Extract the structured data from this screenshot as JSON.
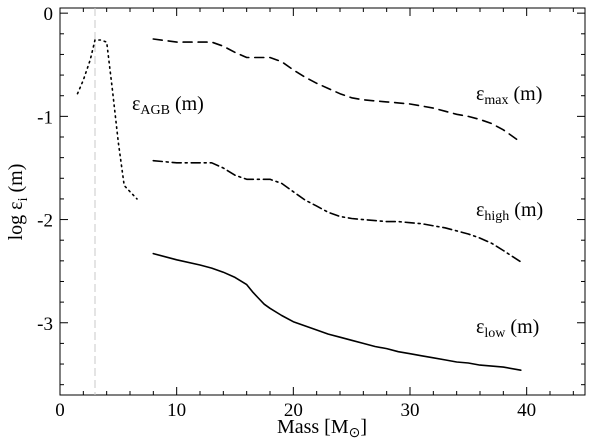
{
  "chart_data": {
    "type": "line",
    "title": "",
    "xlabel_main": "Mass [M",
    "xlabel_symbol": "⊙",
    "xlabel_close": "]",
    "ylabel_main": "log ε",
    "ylabel_sub": "i",
    "ylabel_tail": " (m)",
    "xlim": [
      0,
      45
    ],
    "ylim": [
      -3.7,
      0.05
    ],
    "xticks": [
      0,
      10,
      20,
      30,
      40
    ],
    "xtick_labels": [
      "0",
      "10",
      "20",
      "30",
      "40"
    ],
    "yticks": [
      0,
      -1,
      -2,
      -3
    ],
    "ytick_labels": [
      "0",
      "-1",
      "-2",
      "-3"
    ],
    "grid": false,
    "reference_line": {
      "x": 3.0,
      "color": "#c8c8c8",
      "style": "dashed"
    },
    "series": [
      {
        "name": "eps_max",
        "label_main": "ε",
        "label_sub": "max",
        "label_tail": " (m)",
        "style": "dashed",
        "x": [
          8,
          10,
          11,
          12,
          13,
          14,
          15,
          16,
          17,
          18,
          19,
          20,
          21,
          22,
          23,
          24,
          25,
          26,
          27,
          28,
          29,
          30,
          31,
          32,
          33,
          34,
          35,
          36,
          37,
          38,
          39.5
        ],
        "y": [
          -0.25,
          -0.28,
          -0.28,
          -0.28,
          -0.28,
          -0.32,
          -0.38,
          -0.43,
          -0.43,
          -0.43,
          -0.47,
          -0.55,
          -0.62,
          -0.68,
          -0.73,
          -0.78,
          -0.82,
          -0.84,
          -0.85,
          -0.86,
          -0.87,
          -0.88,
          -0.9,
          -0.92,
          -0.95,
          -0.98,
          -1.0,
          -1.03,
          -1.07,
          -1.13,
          -1.25
        ]
      },
      {
        "name": "eps_high",
        "label_main": "ε",
        "label_sub": "high",
        "label_tail": " (m)",
        "style": "dashdot",
        "x": [
          8,
          10,
          11,
          12,
          13,
          14,
          15,
          16,
          17,
          18,
          19,
          20,
          21,
          22,
          23,
          24,
          25,
          26,
          27,
          28,
          29,
          30,
          31,
          32,
          33,
          34,
          35,
          36,
          37,
          38,
          39.5
        ],
        "y": [
          -1.43,
          -1.45,
          -1.45,
          -1.45,
          -1.45,
          -1.5,
          -1.57,
          -1.61,
          -1.61,
          -1.61,
          -1.65,
          -1.73,
          -1.81,
          -1.87,
          -1.93,
          -1.97,
          -1.99,
          -2.0,
          -2.01,
          -2.02,
          -2.02,
          -2.03,
          -2.04,
          -2.06,
          -2.08,
          -2.11,
          -2.14,
          -2.18,
          -2.23,
          -2.3,
          -2.41
        ]
      },
      {
        "name": "eps_low",
        "label_main": "ε",
        "label_sub": "low",
        "label_tail": " (m)",
        "style": "solid",
        "x": [
          8,
          10,
          12,
          13,
          14,
          15,
          16,
          16.5,
          17,
          17.5,
          18,
          19,
          20,
          21,
          22,
          23,
          24,
          25,
          26,
          27,
          28,
          29,
          30,
          31,
          32,
          33,
          34,
          35,
          36,
          37,
          38,
          39.5
        ],
        "y": [
          -2.33,
          -2.39,
          -2.44,
          -2.47,
          -2.51,
          -2.56,
          -2.63,
          -2.7,
          -2.76,
          -2.82,
          -2.86,
          -2.93,
          -2.99,
          -3.03,
          -3.07,
          -3.11,
          -3.14,
          -3.17,
          -3.2,
          -3.23,
          -3.25,
          -3.28,
          -3.3,
          -3.32,
          -3.34,
          -3.36,
          -3.38,
          -3.39,
          -3.41,
          -3.42,
          -3.43,
          -3.46
        ]
      },
      {
        "name": "eps_agb",
        "label_main": "ε",
        "label_sub": "AGB",
        "label_tail": " (m)",
        "style": "dotted",
        "x": [
          1.5,
          2.0,
          2.6,
          3.0,
          3.5,
          4.0,
          4.5,
          5.0,
          5.5,
          6.0,
          6.6
        ],
        "y": [
          -0.78,
          -0.65,
          -0.45,
          -0.26,
          -0.26,
          -0.28,
          -0.75,
          -1.25,
          -1.67,
          -1.73,
          -1.8
        ]
      }
    ]
  }
}
